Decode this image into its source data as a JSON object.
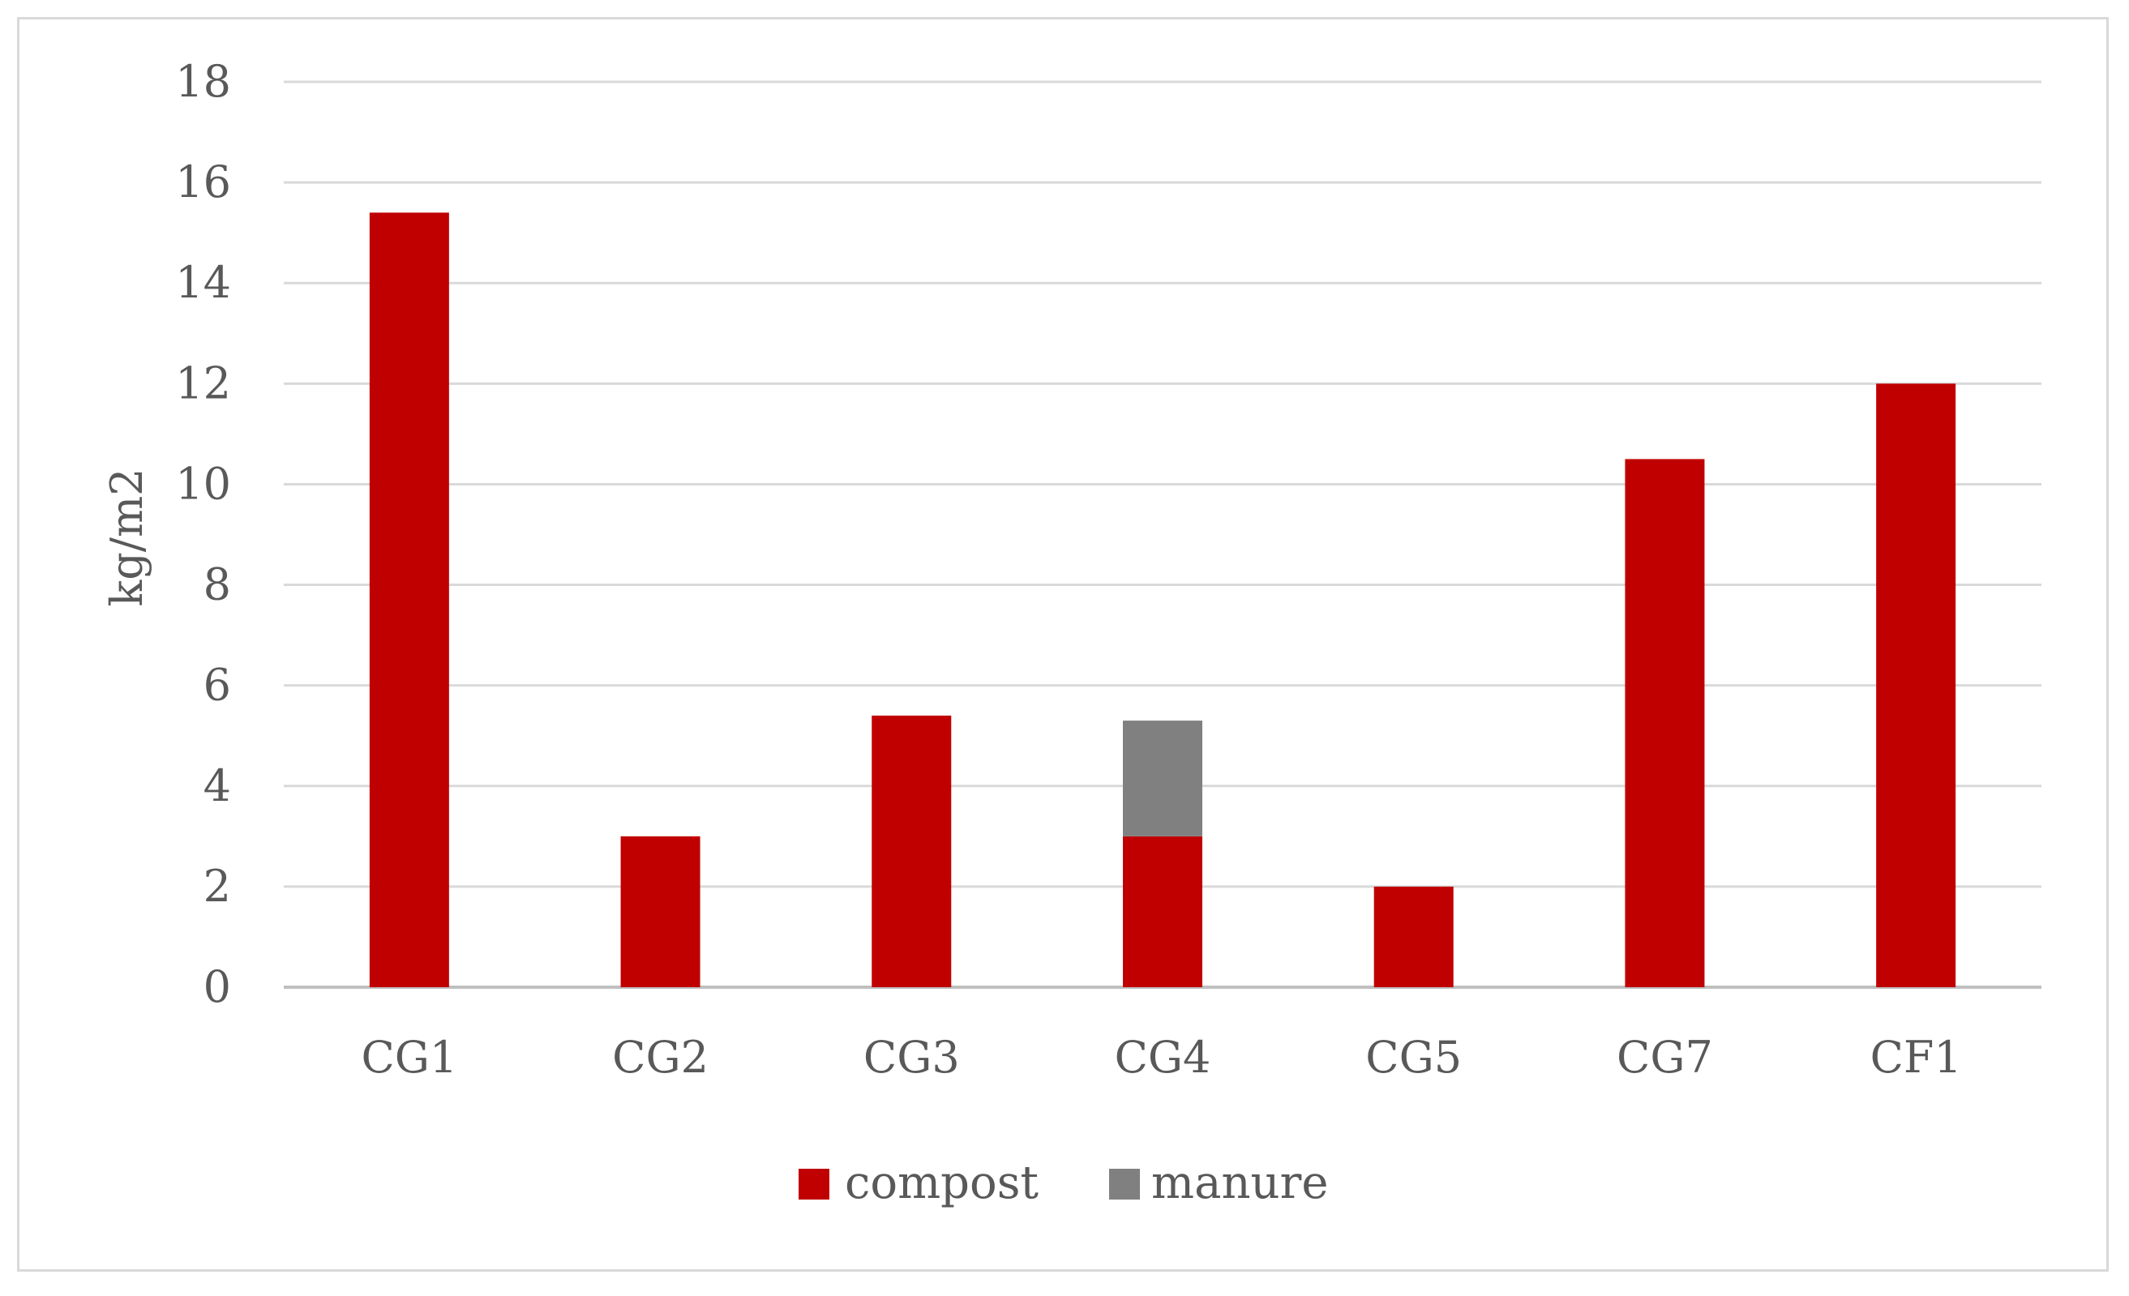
{
  "chart_data": {
    "type": "bar",
    "stacked": true,
    "title": "",
    "xlabel": "",
    "ylabel": "kg/m2",
    "ylim": [
      0,
      18
    ],
    "yticks": [
      0,
      2,
      4,
      6,
      8,
      10,
      12,
      14,
      16,
      18
    ],
    "grid": true,
    "legend_position": "bottom",
    "categories": [
      "CG1",
      "CG2",
      "CG3",
      "CG4",
      "CG5",
      "CG7",
      "CF1"
    ],
    "series": [
      {
        "name": "compost",
        "color": "#c00000",
        "values": [
          15.4,
          3.0,
          5.4,
          3.0,
          2.0,
          10.5,
          12.0
        ]
      },
      {
        "name": "manure",
        "color": "#808080",
        "values": [
          0,
          0,
          0,
          2.3,
          0,
          0,
          0
        ]
      }
    ]
  }
}
